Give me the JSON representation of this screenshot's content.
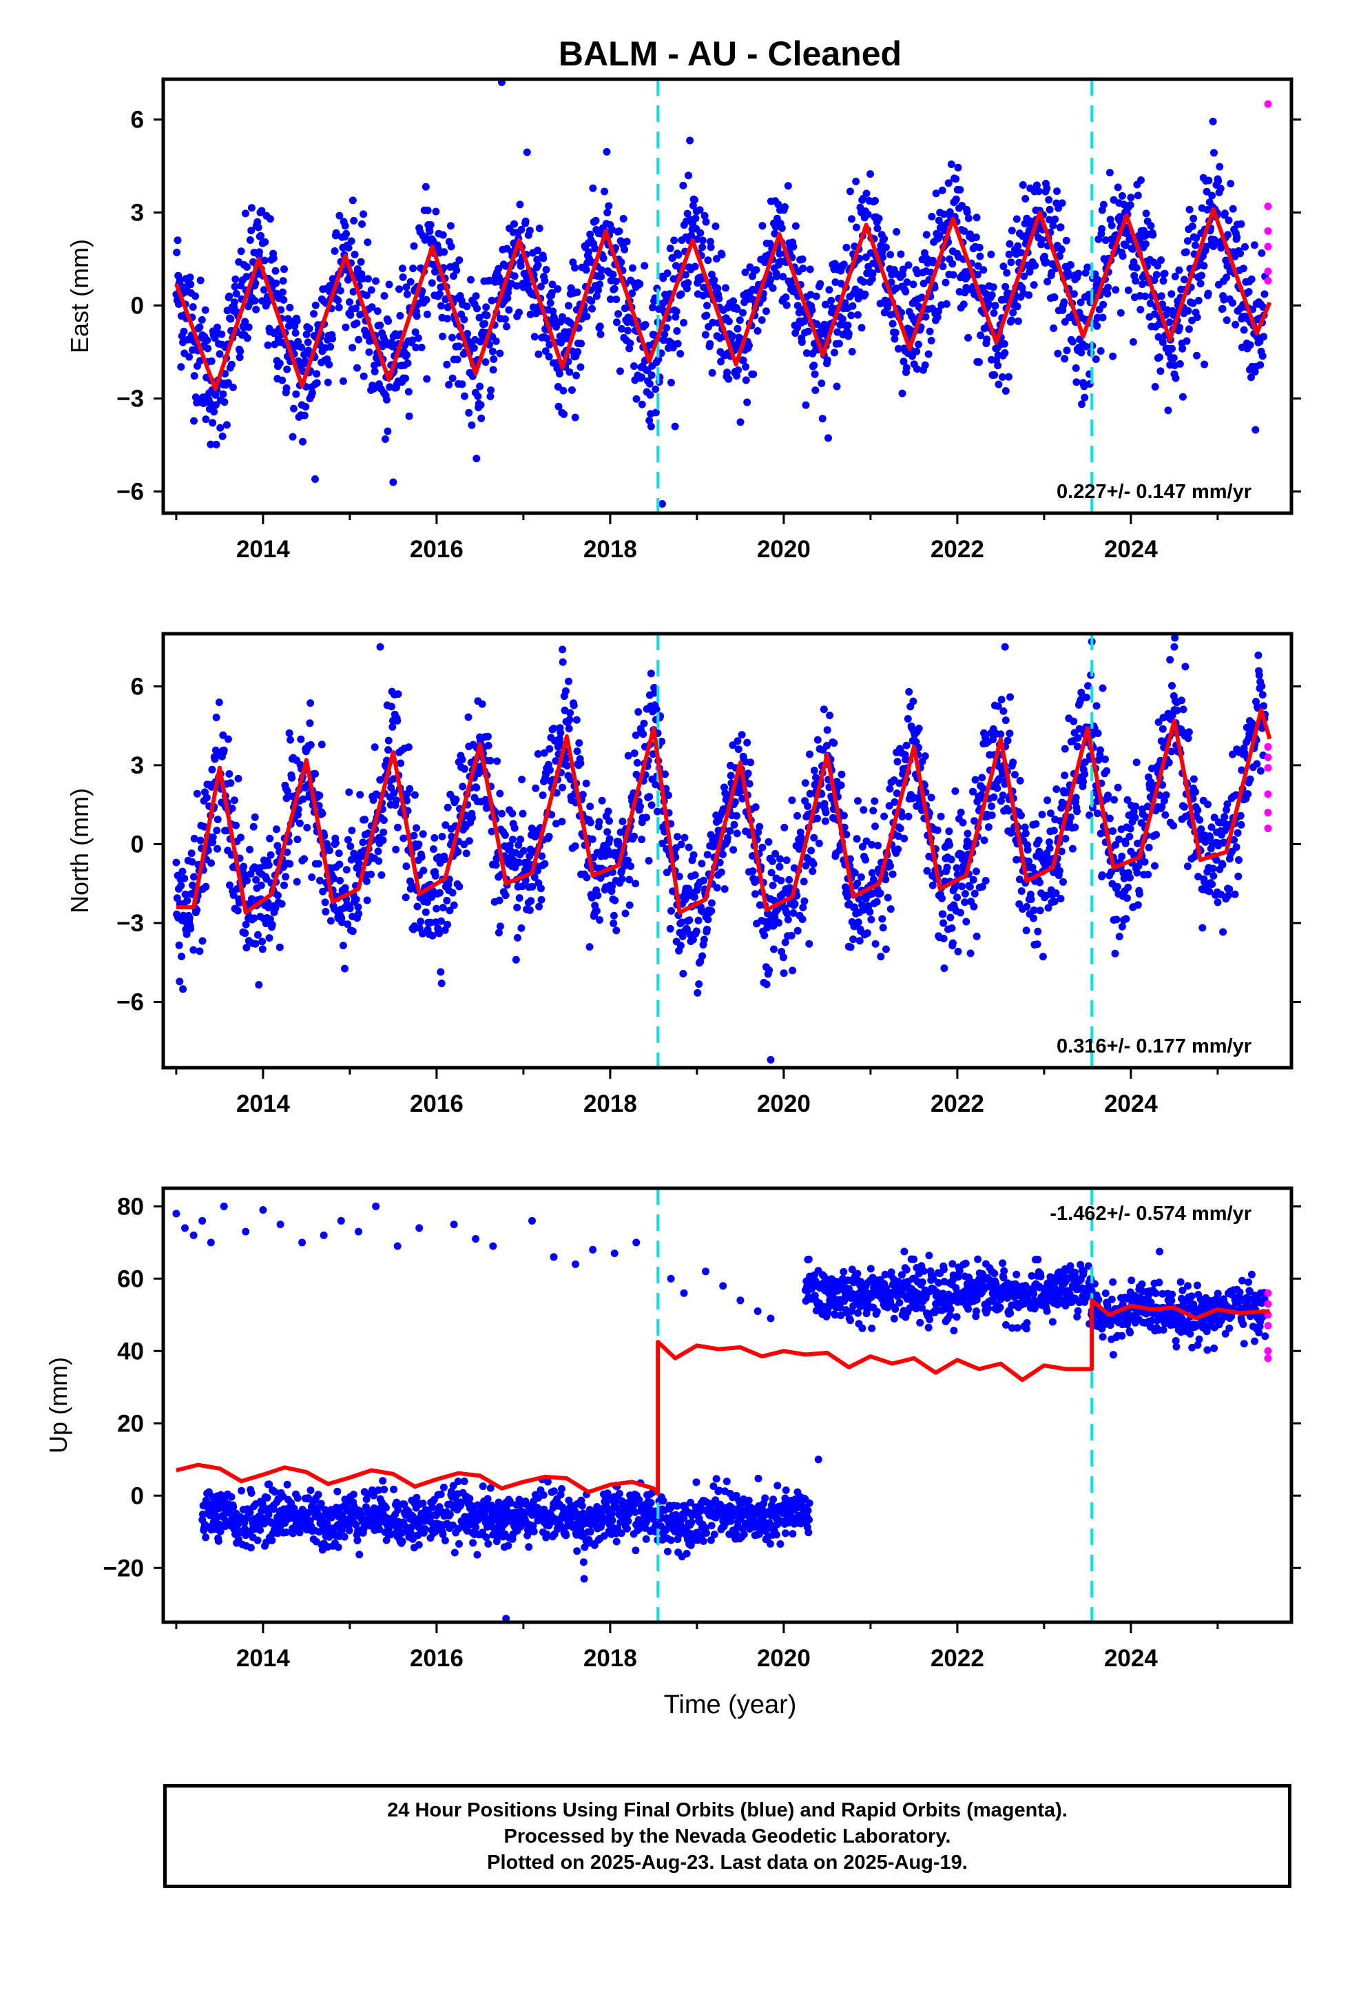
{
  "title": "BALM  - AU - Cleaned",
  "xlabel": "Time (year)",
  "footer": {
    "line1": "24 Hour Positions Using Final Orbits (blue) and Rapid Orbits (magenta).",
    "line2": "Processed by the Nevada Geodetic Laboratory.",
    "line3": "Plotted on 2025-Aug-23. Last data on 2025-Aug-19."
  },
  "colors": {
    "final": "#0000ff",
    "rapid": "#ff00ff",
    "model": "#ff0000",
    "step": "#00e5e5"
  },
  "chart_data": [
    {
      "type": "scatter",
      "component": "east",
      "ylabel": "East (mm)",
      "xlim": [
        2012.85,
        2025.85
      ],
      "ylim": [
        -6.7,
        7.3
      ],
      "yticks": [
        -6,
        -3,
        0,
        3,
        6
      ],
      "xticks": [
        2014,
        2016,
        2018,
        2020,
        2022,
        2024
      ],
      "rate_label": "0.227+/- 0.147 mm/yr",
      "step_epochs": [
        2018.55,
        2023.55
      ],
      "model": {
        "x": [
          2013.0,
          2013.45,
          2013.95,
          2014.45,
          2014.95,
          2015.45,
          2015.95,
          2016.45,
          2016.95,
          2017.45,
          2017.95,
          2018.45,
          2018.95,
          2019.45,
          2019.95,
          2020.45,
          2020.95,
          2021.45,
          2021.95,
          2022.45,
          2022.95,
          2023.45,
          2023.95,
          2024.45,
          2024.95,
          2025.45,
          2025.6
        ],
        "y": [
          0.7,
          -2.7,
          1.5,
          -2.6,
          1.6,
          -2.4,
          1.9,
          -2.2,
          2.1,
          -2.0,
          2.4,
          -1.8,
          2.1,
          -1.9,
          2.3,
          -1.6,
          2.6,
          -1.4,
          2.8,
          -1.2,
          3.0,
          -1.0,
          2.9,
          -1.1,
          3.1,
          -0.9,
          0.1
        ]
      },
      "rapid": {
        "x": [
          2025.58,
          2025.58,
          2025.58,
          2025.58,
          2025.58,
          2025.58
        ],
        "y": [
          6.5,
          3.2,
          2.4,
          1.9,
          1.1,
          0.8
        ]
      },
      "scatter": {
        "model": "seasonal",
        "sigma": 1.1,
        "outliers": [
          [
            2016.75,
            7.2
          ],
          [
            2018.6,
            -6.4
          ],
          [
            2014.6,
            -5.6
          ],
          [
            2015.5,
            -5.7
          ]
        ]
      }
    },
    {
      "type": "scatter",
      "component": "north",
      "ylabel": "North (mm)",
      "xlim": [
        2012.85,
        2025.85
      ],
      "ylim": [
        -8.5,
        8.0
      ],
      "yticks": [
        -6,
        -3,
        0,
        3,
        6
      ],
      "xticks": [
        2014,
        2016,
        2018,
        2020,
        2022,
        2024
      ],
      "rate_label": "0.316+/- 0.177 mm/yr",
      "step_epochs": [
        2018.55,
        2023.55
      ],
      "model": {
        "x": [
          2013.0,
          2013.2,
          2013.5,
          2013.8,
          2014.1,
          2014.5,
          2014.8,
          2015.1,
          2015.5,
          2015.8,
          2016.1,
          2016.5,
          2016.8,
          2017.1,
          2017.5,
          2017.8,
          2018.1,
          2018.5,
          2018.8,
          2019.1,
          2019.5,
          2019.8,
          2020.1,
          2020.5,
          2020.8,
          2021.1,
          2021.5,
          2021.8,
          2022.1,
          2022.5,
          2022.8,
          2023.1,
          2023.5,
          2023.8,
          2024.1,
          2024.5,
          2024.8,
          2025.1,
          2025.5,
          2025.6
        ],
        "y": [
          -2.4,
          -2.4,
          2.9,
          -2.6,
          -1.9,
          3.2,
          -2.2,
          -1.7,
          3.5,
          -1.9,
          -1.3,
          3.8,
          -1.5,
          -1.1,
          4.1,
          -1.2,
          -0.8,
          4.4,
          -2.6,
          -2.1,
          3.1,
          -2.5,
          -2.0,
          3.4,
          -2.0,
          -1.5,
          3.7,
          -1.7,
          -1.2,
          4.0,
          -1.4,
          -0.9,
          4.4,
          -0.9,
          -0.5,
          4.7,
          -0.6,
          -0.3,
          5.1,
          4.0
        ]
      },
      "rapid": {
        "x": [
          2025.58,
          2025.58,
          2025.58,
          2025.58,
          2025.58,
          2025.58
        ],
        "y": [
          3.7,
          2.9,
          1.9,
          1.2,
          0.6,
          3.3
        ]
      },
      "scatter": {
        "model": "seasonal",
        "sigma": 1.3,
        "outliers": [
          [
            2015.35,
            7.5
          ],
          [
            2017.45,
            7.4
          ],
          [
            2019.85,
            -8.2
          ],
          [
            2022.55,
            7.5
          ],
          [
            2023.55,
            7.7
          ],
          [
            2024.5,
            7.5
          ]
        ]
      }
    },
    {
      "type": "scatter",
      "component": "up",
      "ylabel": "Up (mm)",
      "xlim": [
        2012.85,
        2025.85
      ],
      "ylim": [
        -35,
        85
      ],
      "yticks": [
        -20,
        0,
        20,
        40,
        60,
        80
      ],
      "xticks": [
        2014,
        2016,
        2018,
        2020,
        2022,
        2024
      ],
      "rate_label": "-1.462+/- 0.574 mm/yr",
      "step_epochs": [
        2018.55,
        2023.55
      ],
      "model": {
        "x": [
          2013.0,
          2013.25,
          2013.5,
          2013.75,
          2014.0,
          2014.25,
          2014.5,
          2014.75,
          2015.0,
          2015.25,
          2015.5,
          2015.75,
          2016.0,
          2016.25,
          2016.5,
          2016.75,
          2017.0,
          2017.25,
          2017.5,
          2017.75,
          2018.0,
          2018.25,
          2018.5,
          2018.55,
          2018.55,
          2018.75,
          2019.0,
          2019.25,
          2019.5,
          2019.75,
          2020.0,
          2020.25,
          2020.5,
          2020.75,
          2021.0,
          2021.25,
          2021.5,
          2021.75,
          2022.0,
          2022.25,
          2022.5,
          2022.75,
          2023.0,
          2023.25,
          2023.55,
          2023.55,
          2023.75,
          2024.0,
          2024.25,
          2024.5,
          2024.75,
          2025.0,
          2025.25,
          2025.6
        ],
        "y": [
          7,
          8.5,
          7.5,
          4.0,
          5.8,
          7.8,
          6.5,
          3.2,
          5.0,
          7.0,
          6.0,
          2.5,
          4.5,
          6.2,
          5.5,
          2.0,
          3.8,
          5.2,
          4.8,
          1.0,
          3.0,
          3.8,
          2.0,
          0.5,
          42.5,
          38.0,
          41.5,
          40.5,
          41.0,
          38.5,
          40.0,
          39.0,
          39.5,
          35.5,
          38.5,
          36.5,
          38.0,
          34.0,
          37.5,
          35.0,
          36.5,
          32.0,
          36.0,
          35.0,
          35.0,
          54.0,
          50.0,
          52.5,
          51.5,
          52.0,
          49.0,
          51.5,
          50.5,
          51.0
        ]
      },
      "rapid": {
        "x": [
          2025.58,
          2025.58,
          2025.58,
          2025.58,
          2025.58,
          2025.58
        ],
        "y": [
          56,
          53,
          50,
          47,
          40,
          38
        ]
      },
      "scatter": {
        "model": "clusters",
        "clusters": [
          {
            "x_from": 2013.3,
            "x_to": 2020.3,
            "center": -6,
            "sigma": 3.6
          },
          {
            "x_from": 2020.25,
            "x_to": 2023.55,
            "center": 56,
            "sigma": 3.6
          },
          {
            "x_from": 2023.55,
            "x_to": 2025.55,
            "center": 51,
            "sigma": 3.6
          }
        ],
        "sparse": [
          [
            2013.0,
            78
          ],
          [
            2013.1,
            74
          ],
          [
            2013.2,
            72
          ],
          [
            2013.3,
            76
          ],
          [
            2013.4,
            70
          ],
          [
            2013.55,
            80
          ],
          [
            2013.8,
            73
          ],
          [
            2014.0,
            79
          ],
          [
            2014.2,
            75
          ],
          [
            2014.45,
            70
          ],
          [
            2014.7,
            72
          ],
          [
            2014.9,
            76
          ],
          [
            2015.1,
            73
          ],
          [
            2015.3,
            80
          ],
          [
            2015.55,
            69
          ],
          [
            2015.8,
            74
          ],
          [
            2016.2,
            75
          ],
          [
            2016.45,
            71
          ],
          [
            2016.65,
            69
          ],
          [
            2017.1,
            76
          ],
          [
            2017.35,
            66
          ],
          [
            2017.6,
            64
          ],
          [
            2017.8,
            68
          ],
          [
            2018.05,
            67
          ],
          [
            2018.3,
            70
          ],
          [
            2018.7,
            60
          ],
          [
            2018.85,
            56
          ],
          [
            2019.1,
            62
          ],
          [
            2019.3,
            58
          ],
          [
            2019.5,
            54
          ],
          [
            2019.7,
            51
          ],
          [
            2019.85,
            49
          ]
        ],
        "outliers": [
          [
            2016.8,
            -34
          ],
          [
            2017.7,
            -23
          ],
          [
            2020.4,
            10
          ]
        ]
      }
    }
  ]
}
